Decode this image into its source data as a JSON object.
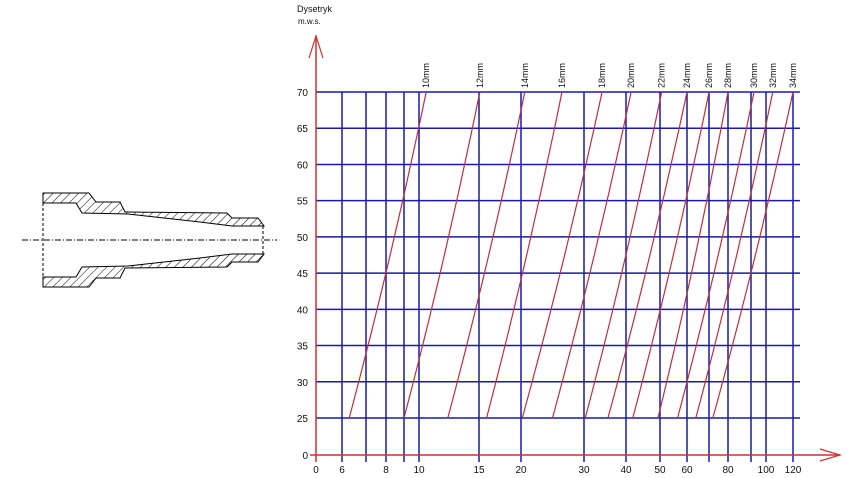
{
  "chart_data": {
    "type": "line",
    "ylabel_line1": "Dysetryk",
    "ylabel_line2": "m.w.s.",
    "y_ticks": [
      "70",
      "65",
      "60",
      "55",
      "50",
      "45",
      "40",
      "35",
      "30",
      "25",
      "0"
    ],
    "x_ticks": [
      "0",
      "6",
      "8",
      "10",
      "15",
      "20",
      "30",
      "40",
      "50",
      "60",
      "80",
      "100",
      "120"
    ],
    "x_gridlines": [
      6,
      7,
      8,
      9,
      10,
      15,
      20,
      30,
      40,
      50,
      60,
      70,
      80,
      90,
      100,
      120
    ],
    "y_gridlines": [
      25,
      30,
      35,
      40,
      45,
      50,
      55,
      60,
      65,
      70
    ],
    "xlim": [
      0,
      120
    ],
    "ylim": [
      0,
      70
    ],
    "grid": true,
    "colors": {
      "grid": "#1a1aa8",
      "axes": "#d03030",
      "curves": "#c0303a"
    },
    "series": [
      {
        "name": "10mm",
        "x": [
          6.3,
          10.6
        ],
        "y": [
          25,
          70
        ]
      },
      {
        "name": "12mm",
        "x": [
          9,
          15.1
        ],
        "y": [
          25,
          70
        ]
      },
      {
        "name": "14mm",
        "x": [
          12.4,
          20.6
        ],
        "y": [
          25,
          70
        ]
      },
      {
        "name": "16mm",
        "x": [
          15.9,
          26.5
        ],
        "y": [
          25,
          70
        ]
      },
      {
        "name": "18mm",
        "x": [
          20.2,
          34.3
        ],
        "y": [
          25,
          70
        ]
      },
      {
        "name": "20mm",
        "x": [
          25,
          41.5
        ],
        "y": [
          25,
          70
        ]
      },
      {
        "name": "22mm",
        "x": [
          30.3,
          50.6
        ],
        "y": [
          25,
          70
        ]
      },
      {
        "name": "24mm",
        "x": [
          35.7,
          60
        ],
        "y": [
          25,
          70
        ]
      },
      {
        "name": "26mm",
        "x": [
          42,
          70
        ],
        "y": [
          25,
          70
        ]
      },
      {
        "name": "28mm",
        "x": [
          49.4,
          80
        ],
        "y": [
          25,
          70
        ]
      },
      {
        "name": "30mm",
        "x": [
          56.5,
          92
        ],
        "y": [
          25,
          70
        ]
      },
      {
        "name": "32mm",
        "x": [
          64,
          105
        ],
        "y": [
          25,
          70
        ]
      },
      {
        "name": "34mm",
        "x": [
          72,
          120
        ],
        "y": [
          25,
          70
        ]
      }
    ]
  },
  "drawing": {
    "name": "nozzle-cross-section",
    "hatch_color": "#000000"
  }
}
